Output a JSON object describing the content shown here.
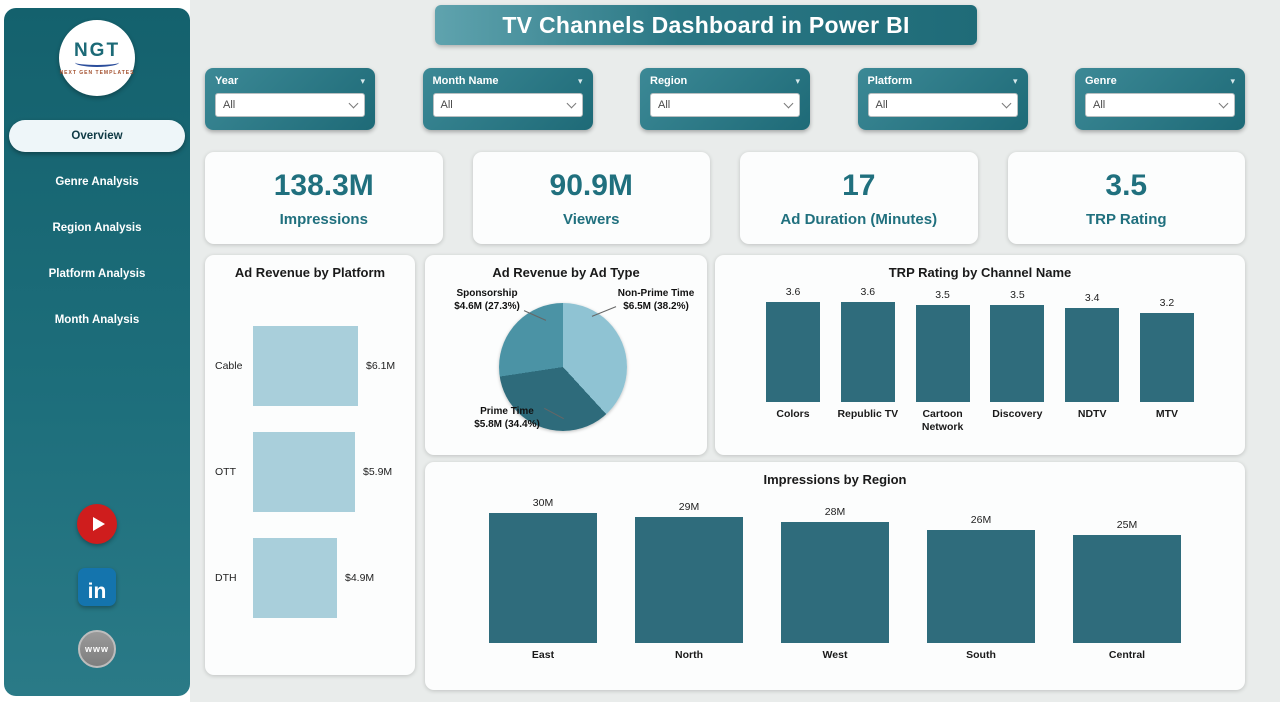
{
  "header": {
    "title": "TV Channels Dashboard in Power BI"
  },
  "sidebar": {
    "logo": {
      "text": "NGT",
      "subtext": "NEXT GEN TEMPLATES"
    },
    "nav": [
      {
        "label": "Overview",
        "active": true
      },
      {
        "label": "Genre Analysis",
        "active": false
      },
      {
        "label": "Region Analysis",
        "active": false
      },
      {
        "label": "Platform Analysis",
        "active": false
      },
      {
        "label": "Month Analysis",
        "active": false
      }
    ],
    "social": {
      "youtube": "YouTube",
      "linkedin": "in",
      "web": "www"
    }
  },
  "filters": [
    {
      "label": "Year",
      "value": "All"
    },
    {
      "label": "Month Name",
      "value": "All"
    },
    {
      "label": "Region",
      "value": "All"
    },
    {
      "label": "Platform",
      "value": "All"
    },
    {
      "label": "Genre",
      "value": "All"
    }
  ],
  "kpis": [
    {
      "value": "138.3M",
      "label": "Impressions"
    },
    {
      "value": "90.9M",
      "label": "Viewers"
    },
    {
      "value": "17",
      "label": "Ad Duration (Minutes)"
    },
    {
      "value": "3.5",
      "label": "TRP Rating"
    }
  ],
  "colors": {
    "accent_dark": "#1f6b78",
    "bar_dark": "#2f6c7c",
    "bar_light": "#a9cfdb",
    "sidebar_teal": "#14616d"
  },
  "chart_data": [
    {
      "type": "bar",
      "orientation": "horizontal",
      "title": "Ad Revenue by Platform",
      "categories": [
        "Cable",
        "OTT",
        "DTH"
      ],
      "values": [
        6.1,
        5.9,
        4.9
      ],
      "labels": [
        "$6.1M",
        "$5.9M",
        "$4.9M"
      ],
      "xmax": 6.5,
      "color": "#a9cfdb"
    },
    {
      "type": "pie",
      "title": "Ad Revenue by Ad Type",
      "slices": [
        {
          "name": "Non-Prime Time",
          "detail": "$6.5M (38.2%)",
          "value": 6.5,
          "pct": 38.2,
          "color": "#8fc3d3"
        },
        {
          "name": "Prime Time",
          "detail": "$5.8M (34.4%)",
          "value": 5.8,
          "pct": 34.4,
          "color": "#2e6b7b"
        },
        {
          "name": "Sponsorship",
          "detail": "$4.6M (27.3%)",
          "value": 4.6,
          "pct": 27.3,
          "color": "#4b93a5"
        }
      ]
    },
    {
      "type": "bar",
      "title": "TRP Rating by Channel Name",
      "categories": [
        "Colors",
        "Republic TV",
        "Cartoon Network",
        "Discovery",
        "NDTV",
        "MTV"
      ],
      "values": [
        3.6,
        3.6,
        3.5,
        3.5,
        3.4,
        3.2
      ],
      "labels": [
        "3.6",
        "3.6",
        "3.5",
        "3.5",
        "3.4",
        "3.2"
      ],
      "ymax": 3.6,
      "color": "#2f6c7c"
    },
    {
      "type": "bar",
      "title": "Impressions by Region",
      "categories": [
        "East",
        "North",
        "West",
        "South",
        "Central"
      ],
      "values": [
        30,
        29,
        28,
        26,
        25
      ],
      "labels": [
        "30M",
        "29M",
        "28M",
        "26M",
        "25M"
      ],
      "ymax": 30,
      "color": "#2f6c7c"
    }
  ]
}
